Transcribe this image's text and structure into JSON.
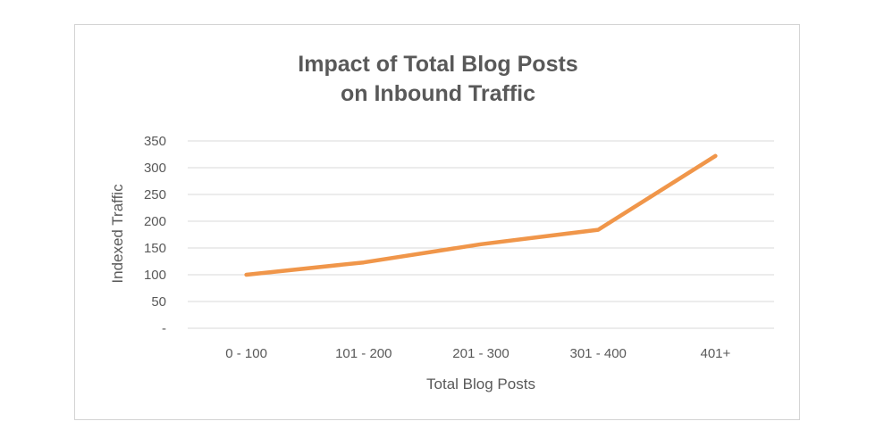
{
  "chart_data": {
    "type": "line",
    "title_lines": [
      "Impact of Total Blog Posts",
      "on Inbound Traffic"
    ],
    "xlabel": "Total Blog Posts",
    "ylabel": "Indexed Traffic",
    "categories": [
      "0 - 100",
      "101 - 200",
      "201 - 300",
      "301 - 400",
      "401+"
    ],
    "series": [
      {
        "values": [
          100,
          123,
          157,
          184,
          322
        ],
        "color": "#f0964a"
      }
    ],
    "ylim": [
      0,
      350
    ],
    "yticks": [
      {
        "value": 350,
        "label": "350"
      },
      {
        "value": 300,
        "label": "300"
      },
      {
        "value": 250,
        "label": "250"
      },
      {
        "value": 200,
        "label": "200"
      },
      {
        "value": 150,
        "label": "150"
      },
      {
        "value": 100,
        "label": "100"
      },
      {
        "value": 50,
        "label": "50"
      },
      {
        "value": 0,
        "label": "-"
      }
    ],
    "grid": true,
    "legend": "none",
    "gridline_color": "#d9d9d9",
    "text_color": "#595959"
  }
}
